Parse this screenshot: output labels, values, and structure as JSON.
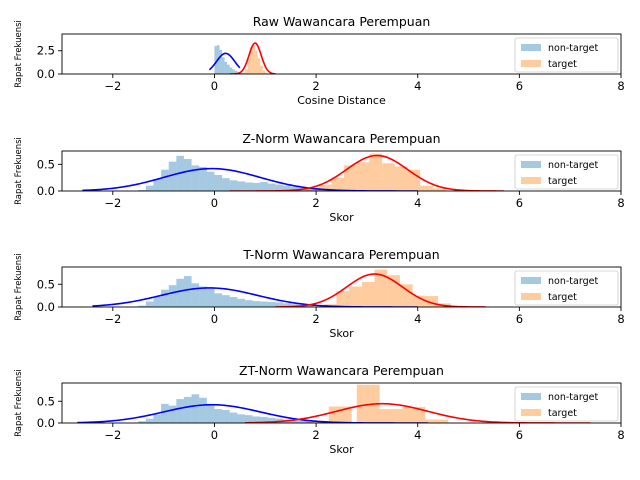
{
  "chart_data": [
    {
      "type": "histogram",
      "title": "Raw Wawancara Perempuan",
      "xlabel": "Cosine Distance",
      "ylabel": "Rapat Frekuensi",
      "xlim": [
        -3,
        8
      ],
      "ylim": [
        0,
        4.3
      ],
      "xticks": [
        "−2",
        "0",
        "2",
        "4",
        "6",
        "8"
      ],
      "xtick_values": [
        -2,
        0,
        2,
        4,
        6,
        8
      ],
      "yticks": [
        "0.0",
        "2.5"
      ],
      "ytick_values": [
        0,
        2.5
      ],
      "legend": {
        "position": "right",
        "entries": [
          "non-target",
          "target"
        ]
      },
      "series": [
        {
          "name": "non-target",
          "kind": "hist",
          "color": "#1f77b4",
          "bin_width": 0.05,
          "bins": [
            {
              "x": 0.0,
              "h": 3.0
            },
            {
              "x": 0.05,
              "h": 3.1
            },
            {
              "x": 0.1,
              "h": 2.6
            },
            {
              "x": 0.15,
              "h": 1.8
            },
            {
              "x": 0.2,
              "h": 1.3
            },
            {
              "x": 0.25,
              "h": 1.0
            },
            {
              "x": 0.3,
              "h": 0.7
            },
            {
              "x": 0.35,
              "h": 0.5
            },
            {
              "x": 0.4,
              "h": 0.35
            },
            {
              "x": 0.45,
              "h": 0.2
            },
            {
              "x": 0.5,
              "h": 0.15
            },
            {
              "x": 0.55,
              "h": 0.08
            }
          ]
        },
        {
          "name": "target",
          "kind": "hist",
          "color": "#ff7f0e",
          "bin_width": 0.05,
          "bins": [
            {
              "x": 0.55,
              "h": 0.15
            },
            {
              "x": 0.6,
              "h": 0.5
            },
            {
              "x": 0.65,
              "h": 1.6
            },
            {
              "x": 0.7,
              "h": 2.9
            },
            {
              "x": 0.75,
              "h": 3.1
            },
            {
              "x": 0.8,
              "h": 2.5
            },
            {
              "x": 0.85,
              "h": 1.7
            },
            {
              "x": 0.9,
              "h": 0.9
            },
            {
              "x": 0.95,
              "h": 0.4
            },
            {
              "x": 1.0,
              "h": 0.15
            }
          ]
        },
        {
          "name": "non-target",
          "kind": "gaussian",
          "color": "#0000ff",
          "mean": 0.22,
          "sd": 0.18,
          "range": [
            -0.1,
            0.5
          ]
        },
        {
          "name": "target",
          "kind": "gaussian",
          "color": "#ff0000",
          "mean": 0.8,
          "sd": 0.12,
          "range": [
            0.3,
            1.2
          ]
        }
      ]
    },
    {
      "type": "histogram",
      "title": "Z-Norm Wawancara Perempuan",
      "xlabel": "Skor",
      "ylabel": "Rapat Frekuensi",
      "xlim": [
        -3,
        8
      ],
      "ylim": [
        0,
        0.75
      ],
      "xticks": [
        "−2",
        "0",
        "2",
        "4",
        "6",
        "8"
      ],
      "xtick_values": [
        -2,
        0,
        2,
        4,
        6,
        8
      ],
      "yticks": [
        "0.0",
        "0.5"
      ],
      "ytick_values": [
        0,
        0.5
      ],
      "legend": {
        "position": "right",
        "entries": [
          "non-target",
          "target"
        ]
      },
      "series": [
        {
          "name": "non-target",
          "kind": "hist",
          "color": "#1f77b4",
          "bin_width": 0.15,
          "bins": [
            {
              "x": -1.5,
              "h": 0.02
            },
            {
              "x": -1.35,
              "h": 0.1
            },
            {
              "x": -1.2,
              "h": 0.22
            },
            {
              "x": -1.05,
              "h": 0.4
            },
            {
              "x": -0.9,
              "h": 0.55
            },
            {
              "x": -0.75,
              "h": 0.66
            },
            {
              "x": -0.6,
              "h": 0.6
            },
            {
              "x": -0.45,
              "h": 0.48
            },
            {
              "x": -0.3,
              "h": 0.45
            },
            {
              "x": -0.15,
              "h": 0.36
            },
            {
              "x": 0.0,
              "h": 0.3
            },
            {
              "x": 0.15,
              "h": 0.24
            },
            {
              "x": 0.3,
              "h": 0.2
            },
            {
              "x": 0.45,
              "h": 0.18
            },
            {
              "x": 0.6,
              "h": 0.16
            },
            {
              "x": 0.75,
              "h": 0.15
            },
            {
              "x": 0.9,
              "h": 0.17
            },
            {
              "x": 1.05,
              "h": 0.14
            },
            {
              "x": 1.2,
              "h": 0.12
            },
            {
              "x": 1.35,
              "h": 0.1
            },
            {
              "x": 1.5,
              "h": 0.08
            },
            {
              "x": 1.65,
              "h": 0.06
            },
            {
              "x": 1.8,
              "h": 0.04
            },
            {
              "x": 1.95,
              "h": 0.03
            }
          ]
        },
        {
          "name": "target",
          "kind": "hist",
          "color": "#ff7f0e",
          "bin_width": 0.25,
          "bins": [
            {
              "x": 1.8,
              "h": 0.05
            },
            {
              "x": 2.05,
              "h": 0.12
            },
            {
              "x": 2.3,
              "h": 0.25
            },
            {
              "x": 2.55,
              "h": 0.48
            },
            {
              "x": 2.8,
              "h": 0.54
            },
            {
              "x": 3.05,
              "h": 0.7
            },
            {
              "x": 3.3,
              "h": 0.52
            },
            {
              "x": 3.55,
              "h": 0.46
            },
            {
              "x": 3.8,
              "h": 0.4
            },
            {
              "x": 4.05,
              "h": 0.1
            },
            {
              "x": 4.3,
              "h": 0.05
            }
          ]
        },
        {
          "name": "non-target",
          "kind": "gaussian",
          "color": "#0000ff",
          "mean": -0.05,
          "sd": 0.95,
          "range": [
            -2.6,
            4.0
          ]
        },
        {
          "name": "target",
          "kind": "gaussian",
          "color": "#ff0000",
          "mean": 3.2,
          "sd": 0.6,
          "range": [
            0.3,
            5.7
          ]
        }
      ]
    },
    {
      "type": "histogram",
      "title": "T-Norm Wawancara Perempuan",
      "xlabel": "Skor",
      "ylabel": "Rapat Frekuensi",
      "xlim": [
        -3,
        8
      ],
      "ylim": [
        0,
        0.88
      ],
      "xticks": [
        "−2",
        "0",
        "2",
        "4",
        "6",
        "8"
      ],
      "xtick_values": [
        -2,
        0,
        2,
        4,
        6,
        8
      ],
      "yticks": [
        "0.0",
        "0.5"
      ],
      "ytick_values": [
        0,
        0.5
      ],
      "legend": {
        "position": "right",
        "entries": [
          "non-target",
          "target"
        ]
      },
      "series": [
        {
          "name": "non-target",
          "kind": "hist",
          "color": "#1f77b4",
          "bin_width": 0.15,
          "bins": [
            {
              "x": -1.5,
              "h": 0.03
            },
            {
              "x": -1.35,
              "h": 0.12
            },
            {
              "x": -1.2,
              "h": 0.22
            },
            {
              "x": -1.05,
              "h": 0.38
            },
            {
              "x": -0.9,
              "h": 0.48
            },
            {
              "x": -0.75,
              "h": 0.62
            },
            {
              "x": -0.6,
              "h": 0.68
            },
            {
              "x": -0.45,
              "h": 0.52
            },
            {
              "x": -0.3,
              "h": 0.45
            },
            {
              "x": -0.15,
              "h": 0.4
            },
            {
              "x": 0.0,
              "h": 0.3
            },
            {
              "x": 0.15,
              "h": 0.26
            },
            {
              "x": 0.3,
              "h": 0.22
            },
            {
              "x": 0.45,
              "h": 0.18
            },
            {
              "x": 0.6,
              "h": 0.15
            },
            {
              "x": 0.75,
              "h": 0.13
            },
            {
              "x": 0.9,
              "h": 0.12
            },
            {
              "x": 1.05,
              "h": 0.11
            },
            {
              "x": 1.2,
              "h": 0.1
            },
            {
              "x": 1.35,
              "h": 0.08
            },
            {
              "x": 1.5,
              "h": 0.06
            },
            {
              "x": 1.65,
              "h": 0.05
            },
            {
              "x": 1.8,
              "h": 0.03
            }
          ]
        },
        {
          "name": "target",
          "kind": "hist",
          "color": "#ff7f0e",
          "bin_width": 0.25,
          "bins": [
            {
              "x": 2.15,
              "h": 0.06
            },
            {
              "x": 2.4,
              "h": 0.35
            },
            {
              "x": 2.65,
              "h": 0.45
            },
            {
              "x": 2.9,
              "h": 0.55
            },
            {
              "x": 3.15,
              "h": 0.82
            },
            {
              "x": 3.4,
              "h": 0.7
            },
            {
              "x": 3.65,
              "h": 0.5
            },
            {
              "x": 3.9,
              "h": 0.25
            },
            {
              "x": 4.15,
              "h": 0.24
            },
            {
              "x": 4.4,
              "h": 0.08
            }
          ]
        },
        {
          "name": "non-target",
          "kind": "gaussian",
          "color": "#0000ff",
          "mean": -0.1,
          "sd": 0.95,
          "range": [
            -2.4,
            4.0
          ]
        },
        {
          "name": "target",
          "kind": "gaussian",
          "color": "#ff0000",
          "mean": 3.15,
          "sd": 0.55,
          "range": [
            1.2,
            5.35
          ]
        }
      ]
    },
    {
      "type": "histogram",
      "title": "ZT-Norm Wawancara Perempuan",
      "xlabel": "Skor",
      "ylabel": "Rapat Frekuensi",
      "xlim": [
        -3,
        8
      ],
      "ylim": [
        0,
        0.92
      ],
      "xticks": [
        "−2",
        "0",
        "2",
        "4",
        "6",
        "8"
      ],
      "xtick_values": [
        -2,
        0,
        2,
        4,
        6,
        8
      ],
      "yticks": [
        "0.0",
        "0.5"
      ],
      "ytick_values": [
        0,
        0.5
      ],
      "legend": {
        "position": "right",
        "entries": [
          "non-target",
          "target"
        ]
      },
      "series": [
        {
          "name": "non-target",
          "kind": "hist",
          "color": "#1f77b4",
          "bin_width": 0.15,
          "bins": [
            {
              "x": -1.5,
              "h": 0.04
            },
            {
              "x": -1.35,
              "h": 0.1
            },
            {
              "x": -1.2,
              "h": 0.2
            },
            {
              "x": -1.05,
              "h": 0.44
            },
            {
              "x": -0.9,
              "h": 0.4
            },
            {
              "x": -0.75,
              "h": 0.55
            },
            {
              "x": -0.6,
              "h": 0.6
            },
            {
              "x": -0.45,
              "h": 0.66
            },
            {
              "x": -0.3,
              "h": 0.58
            },
            {
              "x": -0.15,
              "h": 0.44
            },
            {
              "x": 0.0,
              "h": 0.32
            },
            {
              "x": 0.15,
              "h": 0.3
            },
            {
              "x": 0.3,
              "h": 0.24
            },
            {
              "x": 0.45,
              "h": 0.2
            },
            {
              "x": 0.6,
              "h": 0.18
            },
            {
              "x": 0.75,
              "h": 0.15
            },
            {
              "x": 0.9,
              "h": 0.14
            },
            {
              "x": 1.05,
              "h": 0.12
            },
            {
              "x": 1.2,
              "h": 0.1
            },
            {
              "x": 1.35,
              "h": 0.08
            },
            {
              "x": 1.5,
              "h": 0.06
            },
            {
              "x": 1.65,
              "h": 0.05
            },
            {
              "x": 1.8,
              "h": 0.04
            }
          ]
        },
        {
          "name": "target",
          "kind": "hist",
          "color": "#ff7f0e",
          "bin_width": 0.45,
          "bins": [
            {
              "x": 1.8,
              "h": 0.04
            },
            {
              "x": 2.25,
              "h": 0.38
            },
            {
              "x": 2.8,
              "h": 0.88
            },
            {
              "x": 3.25,
              "h": 0.32
            },
            {
              "x": 3.7,
              "h": 0.37
            },
            {
              "x": 4.15,
              "h": 0.08
            }
          ]
        },
        {
          "name": "non-target",
          "kind": "gaussian",
          "color": "#0000ff",
          "mean": -0.05,
          "sd": 0.95,
          "range": [
            -2.7,
            4.2
          ]
        },
        {
          "name": "target",
          "kind": "gaussian",
          "color": "#ff0000",
          "mean": 3.3,
          "sd": 0.9,
          "range": [
            0.6,
            7.4
          ]
        }
      ]
    }
  ]
}
